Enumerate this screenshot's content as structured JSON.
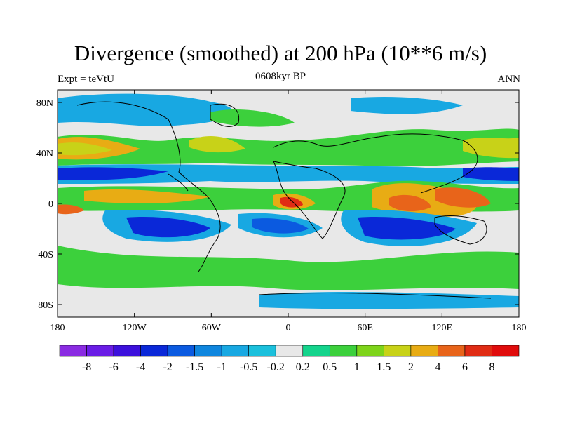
{
  "header": {
    "title": "Divergence (smoothed) at 200 hPa (10**6 m/s)",
    "left": "Expt = teVtU",
    "center": "0608kyr BP",
    "right": "ANN"
  },
  "map": {
    "projection": "cylindrical-equidistant",
    "lon_range": [
      -180,
      180
    ],
    "lat_range": [
      -90,
      90
    ],
    "xticks": [
      {
        "lon": -180,
        "label": "180"
      },
      {
        "lon": -120,
        "label": "120W"
      },
      {
        "lon": -60,
        "label": "60W"
      },
      {
        "lon": 0,
        "label": "0"
      },
      {
        "lon": 60,
        "label": "60E"
      },
      {
        "lon": 120,
        "label": "120E"
      },
      {
        "lon": 180,
        "label": "180"
      }
    ],
    "yticks": [
      {
        "lat": 80,
        "label": "80N"
      },
      {
        "lat": 40,
        "label": "40N"
      },
      {
        "lat": 0,
        "label": "0"
      },
      {
        "lat": -40,
        "label": "40S"
      },
      {
        "lat": -80,
        "label": "80S"
      }
    ]
  },
  "colorbar": {
    "labels": [
      "-8",
      "-6",
      "-4",
      "-2",
      "-1.5",
      "-1",
      "-0.5",
      "-0.2",
      "0.2",
      "0.5",
      "1",
      "1.5",
      "2",
      "4",
      "6",
      "8"
    ],
    "colors": [
      "#8a2be2",
      "#6a1ce6",
      "#3c10dc",
      "#0a28d8",
      "#0b5ae0",
      "#0f86de",
      "#18a8e2",
      "#1bc0dc",
      "#e8e8e8",
      "#14d48c",
      "#3cd03c",
      "#7ed41a",
      "#c8d218",
      "#e8ac14",
      "#e8641a",
      "#e02c14",
      "#e00c0c"
    ]
  },
  "chart_data": {
    "type": "heatmap",
    "title": "Divergence (smoothed) at 200 hPa (10**6 m/s)",
    "levels": [
      -8,
      -6,
      -4,
      -2,
      -1.5,
      -1,
      -0.5,
      -0.2,
      0.2,
      0.5,
      1,
      1.5,
      2,
      4,
      6,
      8
    ],
    "features": [
      {
        "lon": 5,
        "lat": 2,
        "value": 6
      },
      {
        "lon": 100,
        "lat": 0,
        "value": 4
      },
      {
        "lon": 135,
        "lat": 5,
        "value": 6
      },
      {
        "lon": -60,
        "lat": -10,
        "value": 2
      },
      {
        "lon": -165,
        "lat": 38,
        "value": 2
      },
      {
        "lon": -165,
        "lat": 20,
        "value": -4
      },
      {
        "lon": 160,
        "lat": 20,
        "value": -4
      },
      {
        "lon": -110,
        "lat": -20,
        "value": -4
      },
      {
        "lon": 95,
        "lat": -25,
        "value": -4
      },
      {
        "lon": 5,
        "lat": -20,
        "value": -2
      }
    ]
  }
}
